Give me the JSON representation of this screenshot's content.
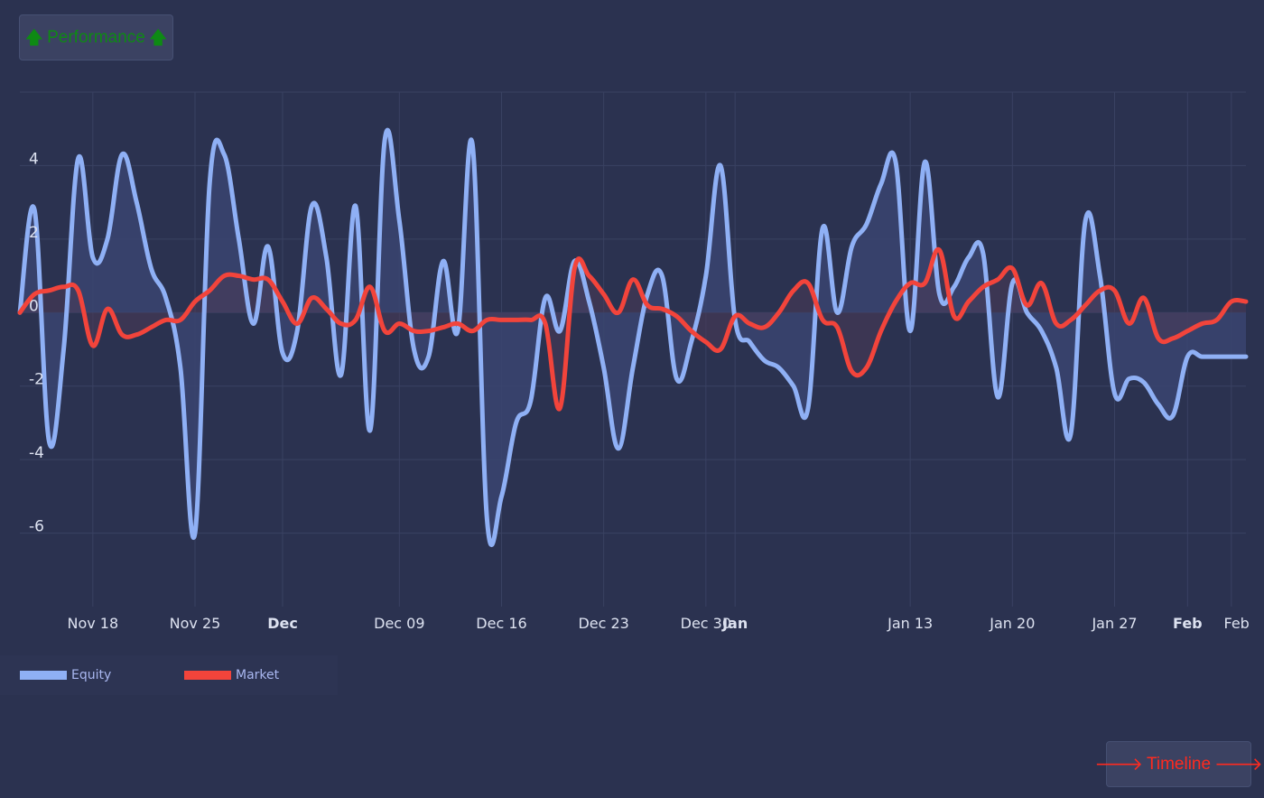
{
  "buttons": {
    "performance": {
      "label": "Performance",
      "arrow": "🡅",
      "color": "#0e8a14"
    },
    "timeline": {
      "label": "Timeline",
      "arrow": "🡒",
      "color": "#ff2a1f"
    }
  },
  "chart_data": {
    "type": "line",
    "title": "",
    "xlabel": "",
    "ylabel": "",
    "ylim": [
      -8,
      6
    ],
    "grid": true,
    "legend_position": "bottom-left",
    "y_ticks": [
      "4",
      "2",
      "0",
      "-2",
      "-4",
      "-6"
    ],
    "y_tick_values": [
      4,
      2,
      0,
      -2,
      -4,
      -6
    ],
    "x_ticks": [
      {
        "label": "Nov 18",
        "date": "2024-11-18",
        "bold": false
      },
      {
        "label": "Nov 25",
        "date": "2024-11-25",
        "bold": false
      },
      {
        "label": "Dec",
        "date": "2024-12-01",
        "bold": true
      },
      {
        "label": "Dec 09",
        "date": "2024-12-09",
        "bold": false
      },
      {
        "label": "Dec 16",
        "date": "2024-12-16",
        "bold": false
      },
      {
        "label": "Dec 23",
        "date": "2024-12-23",
        "bold": false
      },
      {
        "label": "Dec 30",
        "date": "2024-12-30",
        "bold": false
      },
      {
        "label": "Jan",
        "date": "2025-01-01",
        "bold": true
      },
      {
        "label": "Jan 13",
        "date": "2025-01-13",
        "bold": false
      },
      {
        "label": "Jan 20",
        "date": "2025-01-20",
        "bold": false
      },
      {
        "label": "Jan 27",
        "date": "2025-01-27",
        "bold": false
      },
      {
        "label": "Feb",
        "date": "2025-02-01",
        "bold": true
      },
      {
        "label": "Feb",
        "date": "2025-02-04",
        "bold": false
      }
    ],
    "x_range": [
      "2024-11-13",
      "2025-02-05"
    ],
    "series": [
      {
        "name": "Equity",
        "color": "#8fb0f5",
        "fill": "#3a4470",
        "x": [
          "2024-11-13",
          "2024-11-14",
          "2024-11-15",
          "2024-11-16",
          "2024-11-17",
          "2024-11-18",
          "2024-11-19",
          "2024-11-20",
          "2024-11-21",
          "2024-11-22",
          "2024-11-23",
          "2024-11-24",
          "2024-11-25",
          "2024-11-26",
          "2024-11-27",
          "2024-11-28",
          "2024-11-29",
          "2024-11-30",
          "2024-12-01",
          "2024-12-02",
          "2024-12-03",
          "2024-12-04",
          "2024-12-05",
          "2024-12-06",
          "2024-12-07",
          "2024-12-08",
          "2024-12-09",
          "2024-12-10",
          "2024-12-11",
          "2024-12-12",
          "2024-12-13",
          "2024-12-14",
          "2024-12-15",
          "2024-12-16",
          "2024-12-17",
          "2024-12-18",
          "2024-12-19",
          "2024-12-20",
          "2024-12-21",
          "2024-12-22",
          "2024-12-23",
          "2024-12-24",
          "2024-12-25",
          "2024-12-26",
          "2024-12-27",
          "2024-12-28",
          "2024-12-29",
          "2024-12-30",
          "2024-12-31",
          "2025-01-01",
          "2025-01-02",
          "2025-01-03",
          "2025-01-04",
          "2025-01-05",
          "2025-01-06",
          "2025-01-07",
          "2025-01-08",
          "2025-01-09",
          "2025-01-10",
          "2025-01-11",
          "2025-01-12",
          "2025-01-13",
          "2025-01-14",
          "2025-01-15",
          "2025-01-16",
          "2025-01-17",
          "2025-01-18",
          "2025-01-19",
          "2025-01-20",
          "2025-01-21",
          "2025-01-22",
          "2025-01-23",
          "2025-01-24",
          "2025-01-25",
          "2025-01-26",
          "2025-01-27",
          "2025-01-28",
          "2025-01-29",
          "2025-01-30",
          "2025-01-31",
          "2025-02-01",
          "2025-02-02",
          "2025-02-03",
          "2025-02-04",
          "2025-02-05"
        ],
        "values": [
          0.0,
          2.8,
          -3.5,
          -1.0,
          4.2,
          1.5,
          2.0,
          4.3,
          3.0,
          1.2,
          0.4,
          -1.5,
          -6.0,
          3.5,
          4.3,
          2.0,
          -0.3,
          1.8,
          -1.1,
          -0.5,
          2.9,
          1.5,
          -1.7,
          2.9,
          -3.2,
          4.7,
          2.5,
          -1.0,
          -1.2,
          1.4,
          -0.5,
          4.6,
          -5.6,
          -5.0,
          -3.0,
          -2.4,
          0.4,
          -0.5,
          1.4,
          0.3,
          -1.5,
          -3.7,
          -1.5,
          0.5,
          1.0,
          -1.8,
          -0.8,
          1.0,
          4.0,
          -0.2,
          -0.8,
          -1.3,
          -1.5,
          -2.0,
          -2.6,
          2.3,
          0.0,
          1.8,
          2.4,
          3.5,
          4.1,
          -0.5,
          4.1,
          0.5,
          0.7,
          1.5,
          1.6,
          -2.3,
          0.8,
          0.0,
          -0.5,
          -1.5,
          -3.3,
          2.5,
          1.0,
          -2.2,
          -1.8,
          -1.9,
          -2.5,
          -2.8,
          -1.2,
          -1.2,
          -1.2,
          -1.2,
          -1.2
        ]
      },
      {
        "name": "Market",
        "color": "#f2443b",
        "fill": "#4a3a55",
        "x": [
          "2024-11-13",
          "2024-11-14",
          "2024-11-15",
          "2024-11-16",
          "2024-11-17",
          "2024-11-18",
          "2024-11-19",
          "2024-11-20",
          "2024-11-21",
          "2024-11-22",
          "2024-11-23",
          "2024-11-24",
          "2024-11-25",
          "2024-11-26",
          "2024-11-27",
          "2024-11-28",
          "2024-11-29",
          "2024-11-30",
          "2024-12-01",
          "2024-12-02",
          "2024-12-03",
          "2024-12-04",
          "2024-12-05",
          "2024-12-06",
          "2024-12-07",
          "2024-12-08",
          "2024-12-09",
          "2024-12-10",
          "2024-12-11",
          "2024-12-12",
          "2024-12-13",
          "2024-12-14",
          "2024-12-15",
          "2024-12-16",
          "2024-12-17",
          "2024-12-18",
          "2024-12-19",
          "2024-12-20",
          "2024-12-21",
          "2024-12-22",
          "2024-12-23",
          "2024-12-24",
          "2024-12-25",
          "2024-12-26",
          "2024-12-27",
          "2024-12-28",
          "2024-12-29",
          "2024-12-30",
          "2024-12-31",
          "2025-01-01",
          "2025-01-02",
          "2025-01-03",
          "2025-01-04",
          "2025-01-05",
          "2025-01-06",
          "2025-01-07",
          "2025-01-08",
          "2025-01-09",
          "2025-01-10",
          "2025-01-11",
          "2025-01-12",
          "2025-01-13",
          "2025-01-14",
          "2025-01-15",
          "2025-01-16",
          "2025-01-17",
          "2025-01-18",
          "2025-01-19",
          "2025-01-20",
          "2025-01-21",
          "2025-01-22",
          "2025-01-23",
          "2025-01-24",
          "2025-01-25",
          "2025-01-26",
          "2025-01-27",
          "2025-01-28",
          "2025-01-29",
          "2025-01-30",
          "2025-01-31",
          "2025-02-01",
          "2025-02-02",
          "2025-02-03",
          "2025-02-04",
          "2025-02-05"
        ],
        "values": [
          0.0,
          0.5,
          0.6,
          0.7,
          0.6,
          -0.9,
          0.1,
          -0.6,
          -0.6,
          -0.4,
          -0.2,
          -0.2,
          0.3,
          0.6,
          1.0,
          1.0,
          0.9,
          0.9,
          0.3,
          -0.3,
          0.4,
          0.1,
          -0.3,
          -0.2,
          0.7,
          -0.5,
          -0.3,
          -0.5,
          -0.5,
          -0.4,
          -0.3,
          -0.5,
          -0.2,
          -0.2,
          -0.2,
          -0.2,
          -0.3,
          -2.6,
          1.2,
          1.0,
          0.5,
          0.0,
          0.9,
          0.2,
          0.1,
          -0.1,
          -0.5,
          -0.8,
          -1.0,
          -0.1,
          -0.3,
          -0.4,
          0.0,
          0.6,
          0.8,
          -0.2,
          -0.4,
          -1.6,
          -1.5,
          -0.5,
          0.3,
          0.8,
          0.8,
          1.7,
          -0.1,
          0.3,
          0.7,
          0.9,
          1.2,
          0.2,
          0.8,
          -0.3,
          -0.2,
          0.2,
          0.6,
          0.6,
          -0.3,
          0.4,
          -0.7,
          -0.7,
          -0.5,
          -0.3,
          -0.2,
          0.3,
          0.3
        ]
      }
    ]
  },
  "legend": {
    "label_color": "#a9b7f0",
    "items": [
      {
        "label": "Equity",
        "color": "#8fb0f5"
      },
      {
        "label": "Market",
        "color": "#f2443b"
      }
    ]
  },
  "colors": {
    "background": "#2b3250",
    "grid": "#3a4262",
    "tick_text": "#dde2f0"
  }
}
